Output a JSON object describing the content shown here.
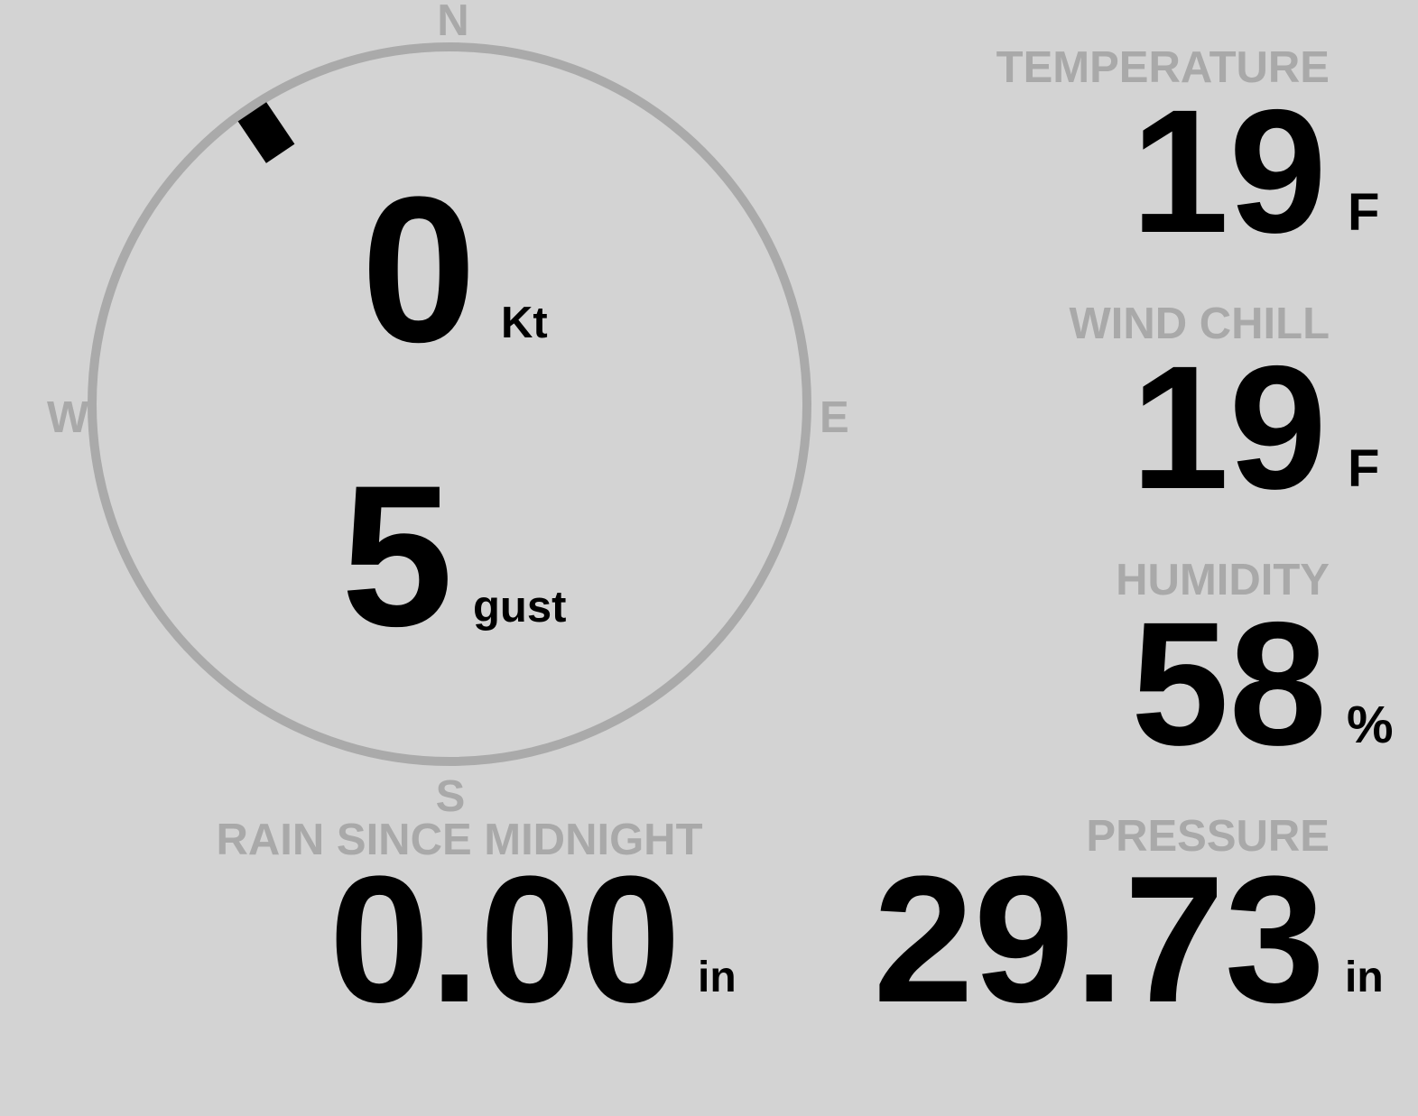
{
  "wind": {
    "speed": "0",
    "speed_unit": "Kt",
    "gust": "5",
    "gust_unit": "gust",
    "direction_deg": 326,
    "compass": {
      "n": "N",
      "e": "E",
      "s": "S",
      "w": "W"
    }
  },
  "temperature": {
    "label": "TEMPERATURE",
    "value": "19",
    "unit": "F"
  },
  "wind_chill": {
    "label": "WIND CHILL",
    "value": "19",
    "unit": "F"
  },
  "humidity": {
    "label": "HUMIDITY",
    "value": "58",
    "unit": "%"
  },
  "rain": {
    "label": "RAIN SINCE MIDNIGHT",
    "value": "0.00",
    "unit": "in"
  },
  "pressure": {
    "label": "PRESSURE",
    "value": "29.73",
    "unit": "in"
  },
  "colors": {
    "background": "#d3d3d3",
    "label": "#a9a9a9",
    "dial": "#aaaaaa",
    "value": "#000000"
  }
}
